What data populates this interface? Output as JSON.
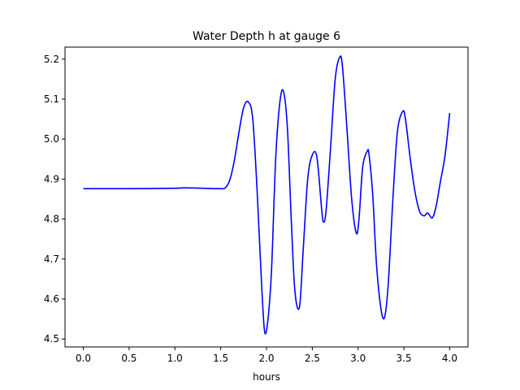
{
  "chart_data": {
    "type": "line",
    "title": "Water Depth h at gauge 6",
    "xlabel": "hours",
    "ylabel": "",
    "xlim": [
      -0.2,
      4.2
    ],
    "ylim": [
      4.48,
      5.23
    ],
    "grid": false,
    "legend": "none",
    "x_ticks": [
      0.0,
      0.5,
      1.0,
      1.5,
      2.0,
      2.5,
      3.0,
      3.5,
      4.0
    ],
    "x_tick_labels": [
      "0.0",
      "0.5",
      "1.0",
      "1.5",
      "2.0",
      "2.5",
      "3.0",
      "3.5",
      "4.0"
    ],
    "y_ticks": [
      4.5,
      4.6,
      4.7,
      4.8,
      4.9,
      5.0,
      5.1,
      5.2
    ],
    "y_tick_labels": [
      "4.5",
      "4.6",
      "4.7",
      "4.8",
      "4.9",
      "5.0",
      "5.1",
      "5.2"
    ],
    "series": [
      {
        "color": "#0000ff",
        "x": [
          0.0,
          0.5,
          1.0,
          1.1,
          1.3,
          1.5,
          1.55,
          1.6,
          1.65,
          1.7,
          1.75,
          1.8,
          1.85,
          1.9,
          1.95,
          1.99,
          2.05,
          2.1,
          2.15,
          2.19,
          2.23,
          2.27,
          2.31,
          2.36,
          2.4,
          2.45,
          2.5,
          2.55,
          2.6,
          2.62,
          2.65,
          2.7,
          2.75,
          2.8,
          2.83,
          2.88,
          2.93,
          2.98,
          3.01,
          3.05,
          3.1,
          3.12,
          3.16,
          3.2,
          3.25,
          3.29,
          3.33,
          3.38,
          3.43,
          3.49,
          3.52,
          3.57,
          3.62,
          3.67,
          3.72,
          3.76,
          3.81,
          3.85,
          3.9,
          3.95,
          4.0
        ],
        "values": [
          4.876,
          4.876,
          4.877,
          4.878,
          4.877,
          4.876,
          4.878,
          4.898,
          4.948,
          5.018,
          5.078,
          5.093,
          5.05,
          4.86,
          4.62,
          4.513,
          4.65,
          4.95,
          5.1,
          5.115,
          5.02,
          4.8,
          4.62,
          4.58,
          4.72,
          4.9,
          4.96,
          4.955,
          4.83,
          4.793,
          4.82,
          4.98,
          5.15,
          5.205,
          5.18,
          5.02,
          4.85,
          4.765,
          4.8,
          4.93,
          4.97,
          4.96,
          4.86,
          4.69,
          4.575,
          4.555,
          4.64,
          4.85,
          5.02,
          5.07,
          5.045,
          4.95,
          4.87,
          4.82,
          4.808,
          4.815,
          4.803,
          4.83,
          4.895,
          4.96,
          5.065
        ]
      }
    ]
  }
}
